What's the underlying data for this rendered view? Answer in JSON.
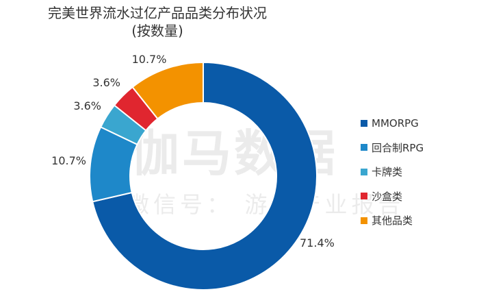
{
  "chart_data": {
    "type": "pie",
    "subtype": "donut",
    "title": "完美世界流水过亿产品品类分布状况",
    "subtitle": "(按数量)",
    "categories": [
      "MMORPG",
      "回合制RPG",
      "卡牌类",
      "沙盒类",
      "其他品类"
    ],
    "values": [
      71.4,
      10.7,
      3.6,
      3.6,
      10.7
    ],
    "value_labels": [
      "71.4%",
      "10.7%",
      "3.6%",
      "3.6%",
      "10.7%"
    ],
    "colors": [
      "#0a5aa8",
      "#1e88c9",
      "#3aa6cf",
      "#e0262f",
      "#f39200"
    ],
    "legend_position": "right"
  },
  "watermark": {
    "main": "伽马数据",
    "sub": "微信号： 游戏产业报告"
  }
}
